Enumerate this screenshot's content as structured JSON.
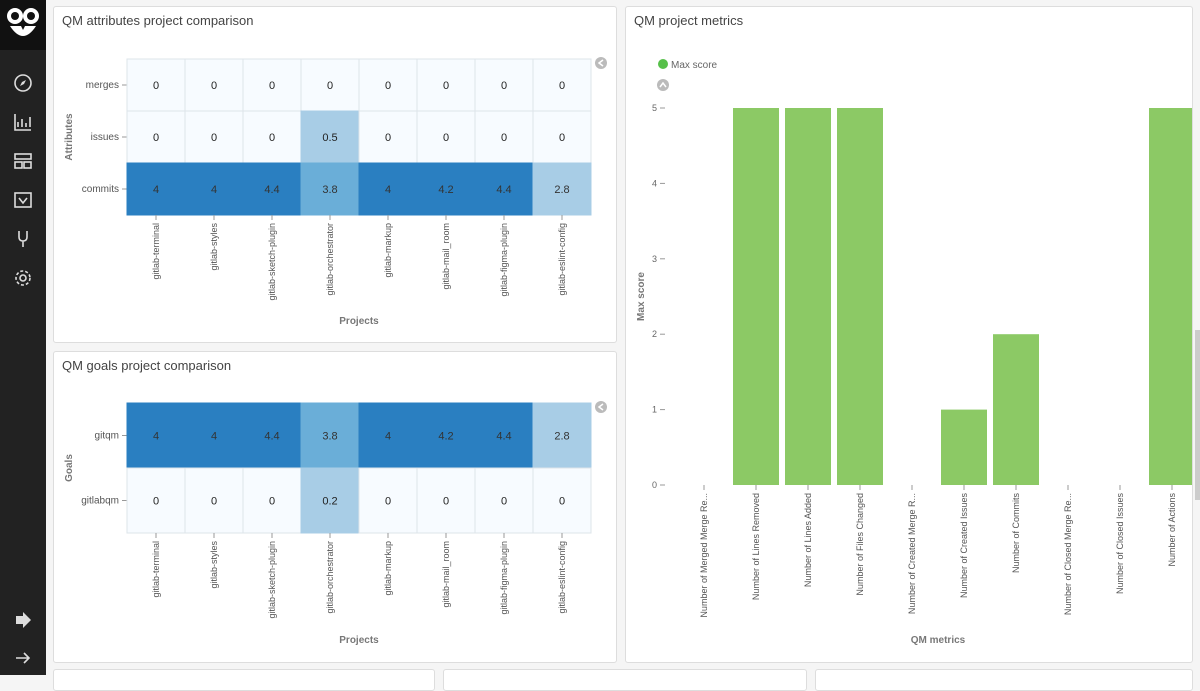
{
  "colors": {
    "sidebar": "#222222",
    "heat_dark": "#2a7fc1",
    "heat_mid": "#6aaed8",
    "heat_light": "#a8cde6",
    "heat_zero": "#f7fbff",
    "bar": "#8cc965",
    "legend_dot": "#57c04a"
  },
  "sidebar": {
    "icons": [
      "compass-icon",
      "chart-icon",
      "dashboard-icon",
      "timelion-icon",
      "devtools-icon",
      "gear-icon"
    ],
    "bottom_icons": [
      "logout-icon",
      "expand-arrow-icon"
    ]
  },
  "panels": {
    "attributes": {
      "title": "QM attributes project comparison",
      "y_axis": "Attributes",
      "x_axis": "Projects",
      "chart_data": {
        "type": "heatmap",
        "rows": [
          "merges",
          "issues",
          "commits"
        ],
        "columns": [
          "gitlab-terminal",
          "gitlab-styles",
          "gitlab-sketch-plugin",
          "gitlab-orchestrator",
          "gitlab-markup",
          "gitlab-mail_room",
          "gitlab-figma-plugin",
          "gitlab-eslint-config"
        ],
        "values": [
          [
            "0",
            "0",
            "0",
            "0",
            "0",
            "0",
            "0",
            "0"
          ],
          [
            "0",
            "0",
            "0",
            "0.5",
            "0",
            "0",
            "0",
            "0"
          ],
          [
            "4",
            "4",
            "4.4",
            "3.8",
            "4",
            "4.2",
            "4.4",
            "2.8"
          ]
        ]
      }
    },
    "goals": {
      "title": "QM goals project comparison",
      "y_axis": "Goals",
      "x_axis": "Projects",
      "chart_data": {
        "type": "heatmap",
        "rows": [
          "gitqm",
          "gitlabqm"
        ],
        "columns": [
          "gitlab-terminal",
          "gitlab-styles",
          "gitlab-sketch-plugin",
          "gitlab-orchestrator",
          "gitlab-markup",
          "gitlab-mail_room",
          "gitlab-figma-plugin",
          "gitlab-eslint-config"
        ],
        "values": [
          [
            "4",
            "4",
            "4.4",
            "3.8",
            "4",
            "4.2",
            "4.4",
            "2.8"
          ],
          [
            "0",
            "0",
            "0",
            "0.2",
            "0",
            "0",
            "0",
            "0"
          ]
        ]
      }
    },
    "metrics": {
      "title": "QM project metrics",
      "legend": "Max score",
      "chart_data": {
        "type": "bar",
        "title": "QM project metrics",
        "xlabel": "QM metrics",
        "ylabel": "Max score",
        "ylim": [
          0,
          5
        ],
        "yticks": [
          "0",
          "1",
          "2",
          "3",
          "4",
          "5"
        ],
        "categories": [
          "Number of Merged Merge Re...",
          "Number of Lines Removed",
          "Number of Lines Added",
          "Number of Files Changed",
          "Number of Created Merge R...",
          "Number of Created Issues",
          "Number of Commits",
          "Number of Closed Merge Re...",
          "Number of Closed Issues",
          "Number of Actions"
        ],
        "values": [
          0,
          5,
          5,
          5,
          0,
          1,
          2,
          0,
          0,
          5
        ]
      }
    }
  }
}
